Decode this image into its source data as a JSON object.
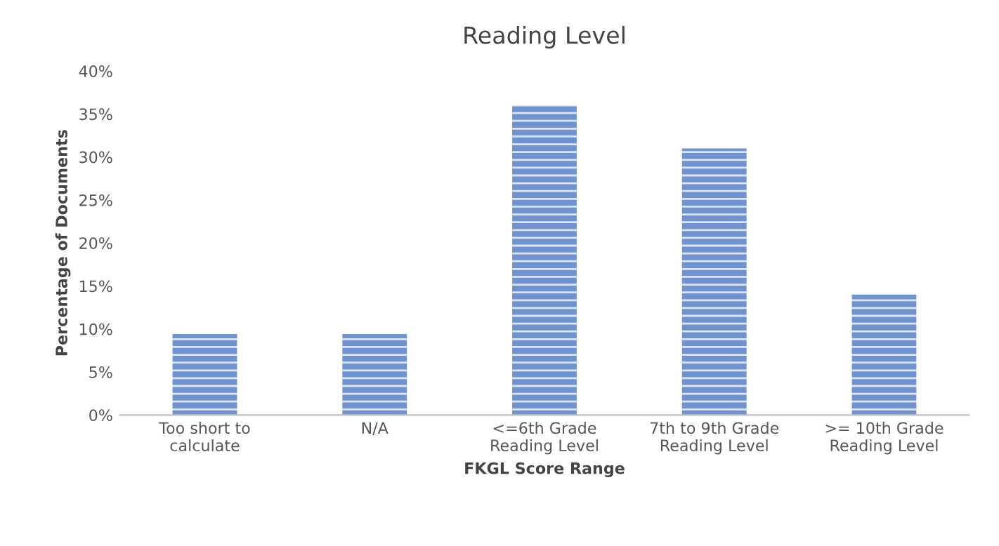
{
  "chart_data": {
    "type": "bar",
    "title": "Reading Level",
    "xlabel": "FKGL Score Range",
    "ylabel": "Percentage of Documents",
    "categories": [
      "Too short to\ncalculate",
      "N/A",
      "<=6th Grade\nReading Level",
      "7th to 9th Grade\nReading Level",
      ">= 10th Grade\nReading Level"
    ],
    "values": [
      9.4,
      9.4,
      36.0,
      31.0,
      14.0
    ],
    "color": "#6f93d0",
    "ylim": [
      0,
      40
    ],
    "yticks": [
      {
        "value": 0,
        "label": "0%"
      },
      {
        "value": 5,
        "label": "5%"
      },
      {
        "value": 10,
        "label": "10%"
      },
      {
        "value": 15,
        "label": "15%"
      },
      {
        "value": 20,
        "label": "20%"
      },
      {
        "value": 25,
        "label": "25%"
      },
      {
        "value": 30,
        "label": "30%"
      },
      {
        "value": 35,
        "label": "35%"
      },
      {
        "value": 40,
        "label": "40%"
      }
    ],
    "grid": false,
    "legend": false
  }
}
